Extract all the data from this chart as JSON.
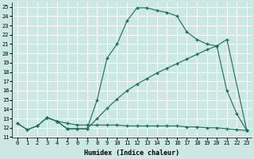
{
  "xlabel": "Humidex (Indice chaleur)",
  "background_color": "#cce8e4",
  "line_color": "#1a6b5a",
  "grid_color": "#ffffff",
  "xlim": [
    -0.5,
    23.5
  ],
  "ylim": [
    11,
    25.5
  ],
  "yticks": [
    11,
    12,
    13,
    14,
    15,
    16,
    17,
    18,
    19,
    20,
    21,
    22,
    23,
    24,
    25
  ],
  "xticks": [
    0,
    1,
    2,
    3,
    4,
    5,
    6,
    7,
    8,
    9,
    10,
    11,
    12,
    13,
    14,
    15,
    16,
    17,
    18,
    19,
    20,
    21,
    22,
    23
  ],
  "line1_x": [
    0,
    1,
    2,
    3,
    4,
    5,
    6,
    7,
    8,
    9,
    10,
    11,
    12,
    13,
    14,
    15,
    16,
    17,
    18,
    19,
    20,
    21,
    22,
    23
  ],
  "line1_y": [
    12.5,
    11.8,
    12.2,
    13.1,
    12.7,
    11.9,
    11.9,
    11.9,
    15.0,
    19.5,
    21.0,
    23.5,
    24.9,
    24.9,
    24.6,
    24.4,
    24.0,
    22.3,
    21.5,
    21.0,
    20.8,
    16.0,
    13.5,
    11.7
  ],
  "line2_x": [
    3,
    4,
    5,
    6,
    7,
    8,
    9,
    10,
    11,
    12,
    13,
    14,
    15,
    16,
    17,
    18,
    19,
    20,
    21,
    23
  ],
  "line2_y": [
    13.1,
    12.7,
    11.9,
    11.9,
    11.9,
    13.0,
    14.1,
    15.1,
    16.0,
    16.7,
    17.3,
    17.9,
    18.4,
    18.9,
    19.4,
    19.9,
    20.4,
    20.8,
    21.5,
    11.7
  ],
  "line3_x": [
    0,
    1,
    2,
    3,
    4,
    5,
    6,
    7,
    8,
    9,
    10,
    11,
    12,
    13,
    14,
    15,
    16,
    17,
    18,
    19,
    20,
    21,
    22,
    23
  ],
  "line3_y": [
    12.5,
    11.8,
    12.2,
    13.1,
    12.7,
    12.5,
    12.3,
    12.3,
    12.3,
    12.3,
    12.3,
    12.2,
    12.2,
    12.2,
    12.2,
    12.2,
    12.2,
    12.1,
    12.1,
    12.0,
    12.0,
    11.9,
    11.8,
    11.7
  ]
}
